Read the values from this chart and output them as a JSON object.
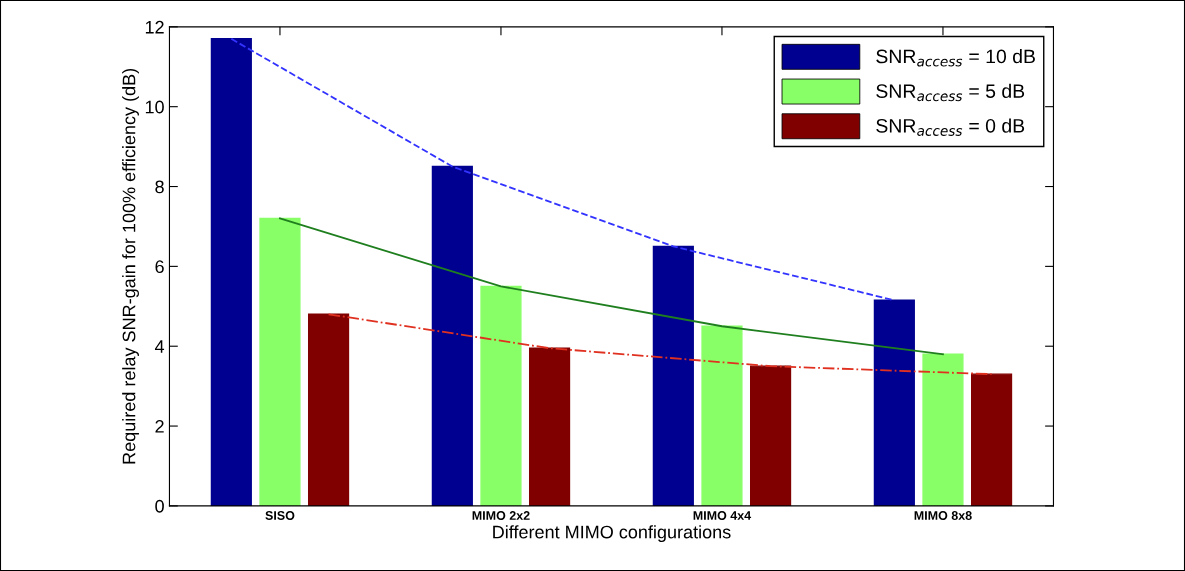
{
  "chart_data": {
    "type": "bar",
    "xlabel": "Different MIMO configurations",
    "ylabel": "Required relay SNR-gain for 100% efficiency (dB)",
    "categories": [
      "SISO",
      "MIMO 2x2",
      "MIMO 4x4",
      "MIMO 8x8"
    ],
    "series": [
      {
        "name": "SNR$_{access}$ = 10 dB",
        "color": "#000090",
        "values": [
          11.7,
          8.5,
          6.5,
          5.15
        ]
      },
      {
        "name": "SNR$_{access}$ = 5 dB",
        "color": "#88ff66",
        "values": [
          7.2,
          5.5,
          4.5,
          3.8
        ]
      },
      {
        "name": "SNR$_{access}$ = 0 dB",
        "color": "#800000",
        "values": [
          4.8,
          3.95,
          3.5,
          3.3
        ]
      },
      {
        "type": "line",
        "color": "#3333ff",
        "line_style": "dashed",
        "values": [
          11.7,
          8.5,
          6.5,
          5.15
        ]
      },
      {
        "type": "line",
        "color": "#1f7f1f",
        "line_style": "solid",
        "values": [
          7.2,
          5.5,
          4.5,
          3.8
        ]
      },
      {
        "type": "line",
        "color": "#e03020",
        "line_style": "dashdot",
        "values": [
          4.8,
          3.95,
          3.5,
          3.3
        ]
      }
    ],
    "ylim": [
      0,
      12
    ],
    "yticks": [
      0,
      2,
      4,
      6,
      8,
      10,
      12
    ],
    "grid": false,
    "legend": "top right"
  }
}
